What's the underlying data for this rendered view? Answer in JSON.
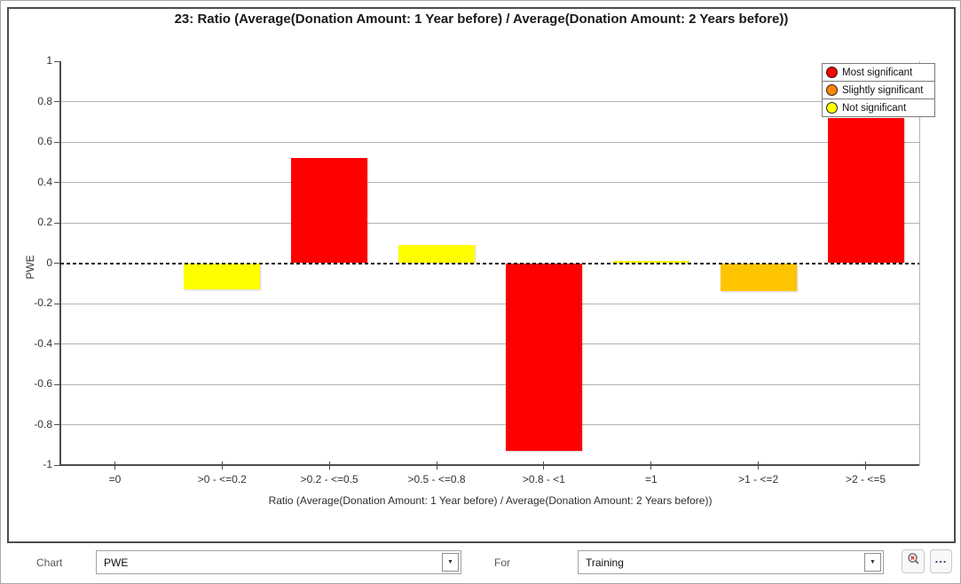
{
  "window": {
    "border_color": "#a9a9a9",
    "background": "#ffffff"
  },
  "chart_panel": {
    "border_color": "#4d4d4d"
  },
  "chart_data": {
    "type": "bar",
    "title": "23: Ratio (Average(Donation Amount: 1 Year before) / Average(Donation Amount: 2 Years before))",
    "xlabel": "Ratio (Average(Donation Amount: 1 Year before) / Average(Donation Amount: 2 Years before))",
    "ylabel": "PWE",
    "ylim": [
      -1,
      1
    ],
    "yticks": [
      "1",
      "0.8",
      "0.6",
      "0.4",
      "0.2",
      "0",
      "-0.2",
      "-0.4",
      "-0.6",
      "-0.8",
      "-1"
    ],
    "grid": "horizontal",
    "zero_line": "dashed",
    "legend_position": "top-right",
    "categories": [
      "=0",
      ">0 - <=0.2",
      ">0.2 - <=0.5",
      ">0.5 - <=0.8",
      ">0.8 - <1",
      "=1",
      ">1 - <=2",
      ">2 - <=5"
    ],
    "values": [
      0,
      -0.13,
      0.52,
      0.09,
      -0.93,
      0.01,
      -0.14,
      0.72
    ],
    "bar_colors": [
      "#ffff00",
      "#ffff00",
      "#ff0000",
      "#ffff00",
      "#ff0000",
      "#ffff00",
      "#ffc400",
      "#ff0000"
    ],
    "significance": [
      "none",
      "not-significant",
      "most-significant",
      "not-significant",
      "most-significant",
      "not-significant",
      "slightly-significant",
      "most-significant"
    ],
    "legend": [
      {
        "label": "Most significant",
        "color": "#ff0000"
      },
      {
        "label": "Slightly significant",
        "color": "#ff8400"
      },
      {
        "label": "Not significant",
        "color": "#ffff00"
      }
    ]
  },
  "toolbar": {
    "chart_label": "Chart",
    "chart_select_value": "PWE",
    "for_label": "For",
    "for_select_value": "Training",
    "combo_arrow_glyph": "▼",
    "zoom_reset_icon": "magnifier-red-x-icon",
    "more_button_label": "..."
  }
}
